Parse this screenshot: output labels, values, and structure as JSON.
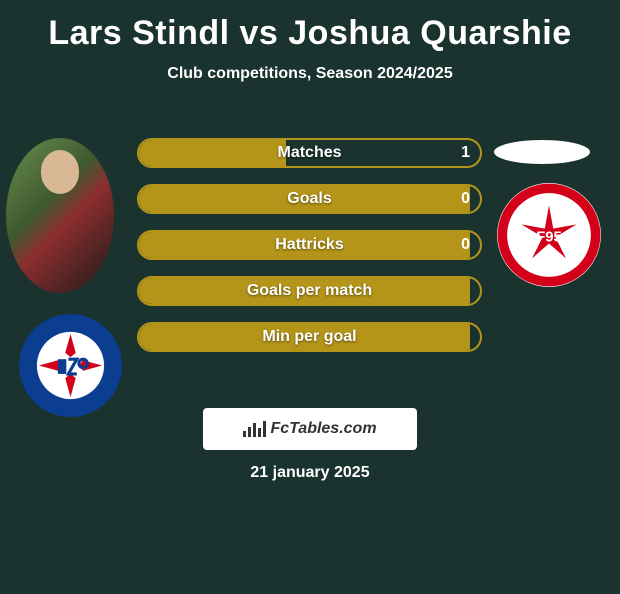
{
  "title": "Lars Stindl vs Joshua Quarshie",
  "subtitle": "Club competitions, Season 2024/2025",
  "watermark_text": "FcTables.com",
  "date": "21 january 2025",
  "colors": {
    "background": "#1a332e",
    "bar_fill": "#b49419",
    "bar_border": "#b49419",
    "title_color": "#ffffff",
    "text_color": "#ffffff"
  },
  "bars": [
    {
      "label": "Matches",
      "value": "1",
      "fill_pct": 43
    },
    {
      "label": "Goals",
      "value": "0",
      "fill_pct": 97
    },
    {
      "label": "Hattricks",
      "value": "0",
      "fill_pct": 97
    },
    {
      "label": "Goals per match",
      "value": "",
      "fill_pct": 97
    },
    {
      "label": "Min per goal",
      "value": "",
      "fill_pct": 97
    }
  ],
  "club_left": {
    "name": "karlsruher-sc",
    "outer": "#0b3d91",
    "inner": "#ffffff",
    "accent": "#d4001a"
  },
  "club_right": {
    "name": "fortuna-dusseldorf",
    "outer": "#ffffff",
    "ring": "#d4001a",
    "inner": "#ffffff",
    "accent": "#d4001a"
  }
}
